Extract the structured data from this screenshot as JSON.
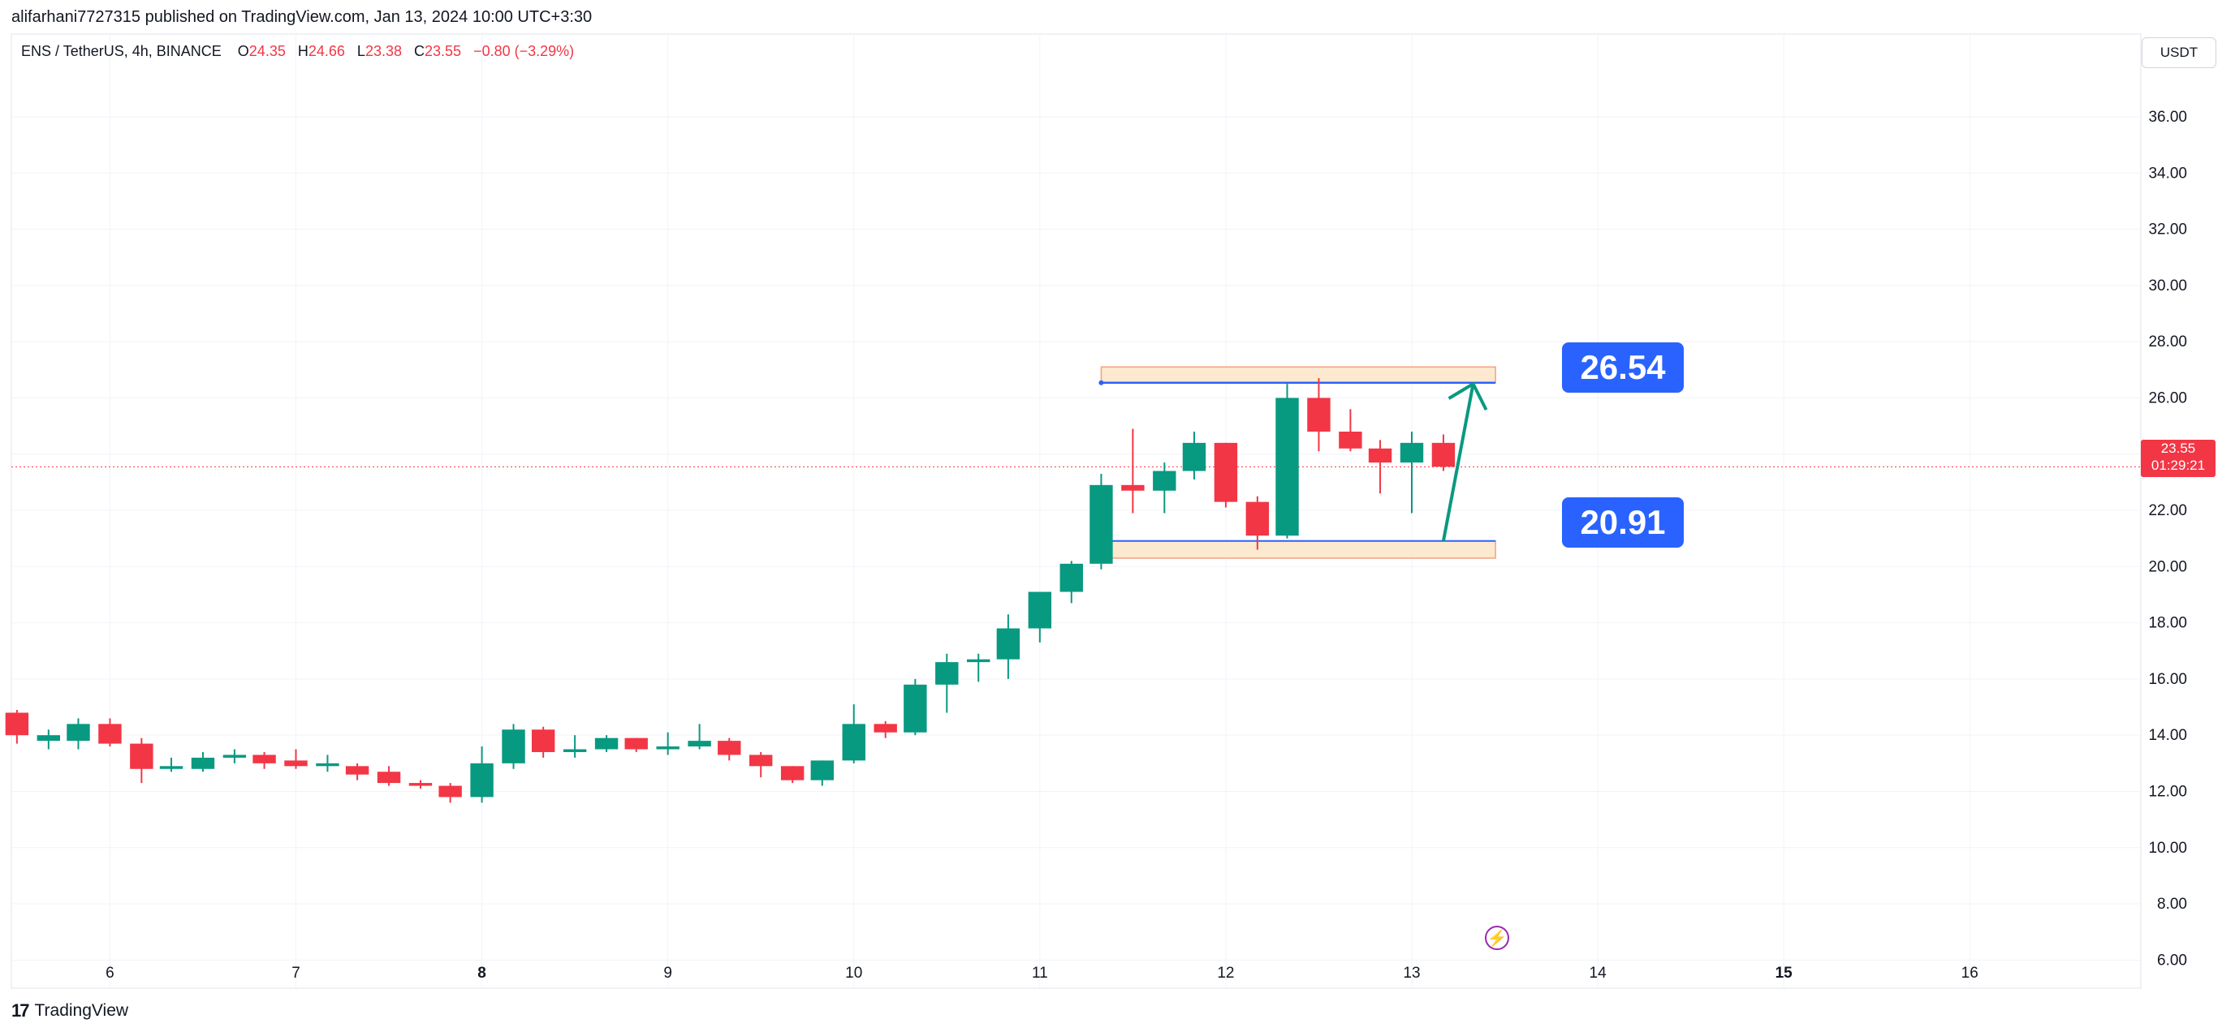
{
  "publisher_line": "alifarhani7727315 published on TradingView.com, Jan 13, 2024 10:00 UTC+3:30",
  "symbol": {
    "name": "ENS / TetherUS, 4h, BINANCE",
    "o_label": "O",
    "o": "24.35",
    "h_label": "H",
    "h": "24.66",
    "l_label": "L",
    "l": "23.38",
    "c_label": "C",
    "c": "23.55",
    "change": "−0.80 (−3.29%)"
  },
  "unit": "USDT",
  "price_tag": {
    "price": "23.55",
    "countdown": "01:29:21"
  },
  "levels": {
    "upper": "26.54",
    "lower": "20.91"
  },
  "footer_brand": "TradingView",
  "colors": {
    "up": "#089981",
    "down": "#f23645",
    "accent": "#2962ff",
    "zone_fill": "#fde9cf",
    "zone_border": "#f5a07a"
  },
  "chart_data": {
    "type": "candlestick",
    "ylim": [
      5,
      37.5
    ],
    "x_range": [
      5.47,
      16.92
    ],
    "y_ticks": [
      "6.00",
      "8.00",
      "10.00",
      "12.00",
      "14.00",
      "16.00",
      "18.00",
      "20.00",
      "22.00",
      "24.00",
      "26.00",
      "28.00",
      "30.00",
      "32.00",
      "34.00",
      "36.00"
    ],
    "x_ticks": [
      {
        "label": "6",
        "x": 6,
        "bold": false
      },
      {
        "label": "7",
        "x": 7,
        "bold": false
      },
      {
        "label": "8",
        "x": 8,
        "bold": true
      },
      {
        "label": "9",
        "x": 9,
        "bold": false
      },
      {
        "label": "10",
        "x": 10,
        "bold": false
      },
      {
        "label": "11",
        "x": 11,
        "bold": false
      },
      {
        "label": "12",
        "x": 12,
        "bold": false
      },
      {
        "label": "13",
        "x": 13,
        "bold": false
      },
      {
        "label": "14",
        "x": 14,
        "bold": false
      },
      {
        "label": "15",
        "x": 15,
        "bold": true
      },
      {
        "label": "16",
        "x": 16,
        "bold": false
      }
    ],
    "candle_width_days": 0.124,
    "candles": [
      {
        "t": 5.5,
        "o": 14.8,
        "h": 14.9,
        "l": 13.7,
        "c": 14.0
      },
      {
        "t": 5.67,
        "o": 13.8,
        "h": 14.2,
        "l": 13.5,
        "c": 14.0
      },
      {
        "t": 5.83,
        "o": 13.8,
        "h": 14.6,
        "l": 13.5,
        "c": 14.4
      },
      {
        "t": 6.0,
        "o": 14.4,
        "h": 14.6,
        "l": 13.6,
        "c": 13.7
      },
      {
        "t": 6.17,
        "o": 13.7,
        "h": 13.9,
        "l": 12.3,
        "c": 12.8
      },
      {
        "t": 6.33,
        "o": 12.8,
        "h": 13.2,
        "l": 12.7,
        "c": 12.9
      },
      {
        "t": 6.5,
        "o": 12.8,
        "h": 13.4,
        "l": 12.7,
        "c": 13.2
      },
      {
        "t": 6.67,
        "o": 13.2,
        "h": 13.5,
        "l": 13.0,
        "c": 13.3
      },
      {
        "t": 6.83,
        "o": 13.3,
        "h": 13.4,
        "l": 12.8,
        "c": 13.0
      },
      {
        "t": 7.0,
        "o": 13.1,
        "h": 13.5,
        "l": 12.8,
        "c": 12.9
      },
      {
        "t": 7.17,
        "o": 12.9,
        "h": 13.3,
        "l": 12.7,
        "c": 13.0
      },
      {
        "t": 7.33,
        "o": 12.9,
        "h": 13.0,
        "l": 12.4,
        "c": 12.6
      },
      {
        "t": 7.5,
        "o": 12.7,
        "h": 12.9,
        "l": 12.2,
        "c": 12.3
      },
      {
        "t": 7.67,
        "o": 12.3,
        "h": 12.4,
        "l": 12.1,
        "c": 12.2
      },
      {
        "t": 7.83,
        "o": 12.2,
        "h": 12.3,
        "l": 11.6,
        "c": 11.8
      },
      {
        "t": 8.0,
        "o": 11.8,
        "h": 13.6,
        "l": 11.6,
        "c": 13.0
      },
      {
        "t": 8.17,
        "o": 13.0,
        "h": 14.4,
        "l": 12.8,
        "c": 14.2
      },
      {
        "t": 8.33,
        "o": 14.2,
        "h": 14.3,
        "l": 13.2,
        "c": 13.4
      },
      {
        "t": 8.5,
        "o": 13.4,
        "h": 14.0,
        "l": 13.2,
        "c": 13.5
      },
      {
        "t": 8.67,
        "o": 13.5,
        "h": 14.0,
        "l": 13.4,
        "c": 13.9
      },
      {
        "t": 8.83,
        "o": 13.9,
        "h": 13.9,
        "l": 13.4,
        "c": 13.5
      },
      {
        "t": 9.0,
        "o": 13.5,
        "h": 14.1,
        "l": 13.3,
        "c": 13.6
      },
      {
        "t": 9.17,
        "o": 13.6,
        "h": 14.4,
        "l": 13.5,
        "c": 13.8
      },
      {
        "t": 9.33,
        "o": 13.8,
        "h": 13.9,
        "l": 13.1,
        "c": 13.3
      },
      {
        "t": 9.5,
        "o": 13.3,
        "h": 13.4,
        "l": 12.5,
        "c": 12.9
      },
      {
        "t": 9.67,
        "o": 12.9,
        "h": 12.9,
        "l": 12.3,
        "c": 12.4
      },
      {
        "t": 9.83,
        "o": 12.4,
        "h": 13.1,
        "l": 12.2,
        "c": 13.1
      },
      {
        "t": 10.0,
        "o": 13.1,
        "h": 15.1,
        "l": 13.0,
        "c": 14.4
      },
      {
        "t": 10.17,
        "o": 14.4,
        "h": 14.5,
        "l": 13.9,
        "c": 14.1
      },
      {
        "t": 10.33,
        "o": 14.1,
        "h": 16.0,
        "l": 14.0,
        "c": 15.8
      },
      {
        "t": 10.5,
        "o": 15.8,
        "h": 16.9,
        "l": 14.8,
        "c": 16.6
      },
      {
        "t": 10.67,
        "o": 16.6,
        "h": 16.9,
        "l": 15.9,
        "c": 16.7
      },
      {
        "t": 10.83,
        "o": 16.7,
        "h": 18.3,
        "l": 16.0,
        "c": 17.8
      },
      {
        "t": 11.0,
        "o": 17.8,
        "h": 19.1,
        "l": 17.3,
        "c": 19.1
      },
      {
        "t": 11.17,
        "o": 19.1,
        "h": 20.2,
        "l": 18.7,
        "c": 20.1
      },
      {
        "t": 11.33,
        "o": 20.1,
        "h": 23.3,
        "l": 19.9,
        "c": 22.9
      },
      {
        "t": 11.5,
        "o": 22.9,
        "h": 24.9,
        "l": 21.9,
        "c": 22.7
      },
      {
        "t": 11.67,
        "o": 22.7,
        "h": 23.7,
        "l": 21.9,
        "c": 23.4
      },
      {
        "t": 11.83,
        "o": 23.4,
        "h": 24.8,
        "l": 23.1,
        "c": 24.4
      },
      {
        "t": 12.0,
        "o": 24.4,
        "h": 24.4,
        "l": 22.1,
        "c": 22.3
      },
      {
        "t": 12.17,
        "o": 22.3,
        "h": 22.5,
        "l": 20.6,
        "c": 21.1
      },
      {
        "t": 12.33,
        "o": 21.1,
        "h": 26.5,
        "l": 21.0,
        "c": 26.0
      },
      {
        "t": 12.5,
        "o": 26.0,
        "h": 26.7,
        "l": 24.1,
        "c": 24.8
      },
      {
        "t": 12.67,
        "o": 24.8,
        "h": 25.6,
        "l": 24.1,
        "c": 24.2
      },
      {
        "t": 12.83,
        "o": 24.2,
        "h": 24.5,
        "l": 22.6,
        "c": 23.7
      },
      {
        "t": 13.0,
        "o": 23.7,
        "h": 24.8,
        "l": 21.9,
        "c": 24.4
      },
      {
        "t": 13.17,
        "o": 24.4,
        "h": 24.7,
        "l": 23.4,
        "c": 23.55
      }
    ],
    "last_price": 23.55,
    "upper_zone": {
      "x0": 11.33,
      "x1": 13.45,
      "y0": 26.54,
      "y1": 27.1
    },
    "lower_zone": {
      "x0": 11.33,
      "x1": 13.45,
      "y0": 20.3,
      "y1": 20.91
    },
    "arrow": {
      "from": {
        "x": 13.17,
        "y": 20.91
      },
      "to": {
        "x": 13.33,
        "y": 26.5
      }
    }
  }
}
